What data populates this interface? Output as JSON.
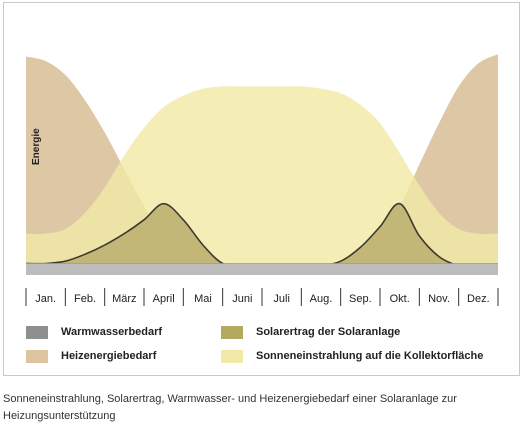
{
  "chart_data": {
    "type": "area",
    "ylabel": "Energie",
    "categories": [
      "Jan.",
      "Feb.",
      "März",
      "April",
      "Mai",
      "Juni",
      "Juli",
      "Aug.",
      "Sep.",
      "Okt.",
      "Nov.",
      "Dez."
    ],
    "x": [
      0,
      0.5,
      1,
      1.5,
      2,
      2.5,
      3,
      3.5,
      4,
      4.5,
      5,
      5.5,
      6,
      6.5,
      7,
      7.5,
      8,
      8.5,
      9,
      9.5,
      10,
      10.5,
      11,
      11.5,
      12
    ],
    "ylim": [
      0,
      100
    ],
    "series": [
      {
        "name": "Sonneneinstrahlung auf die Kollektorfläche",
        "color": "#f1e9a6",
        "values": [
          18,
          18,
          20,
          27,
          38,
          52,
          64,
          73,
          78,
          81,
          82,
          82,
          82,
          82,
          82,
          81,
          79,
          74,
          66,
          53,
          39,
          27,
          20,
          18,
          18
        ]
      },
      {
        "name": "Heizenergiebedarf",
        "color": "#dcc4a0",
        "values": [
          95,
          93,
          87,
          76,
          62,
          46,
          30,
          17,
          8,
          5,
          5,
          5,
          5,
          5,
          5,
          5,
          5,
          8,
          17,
          30,
          48,
          66,
          82,
          92,
          96
        ]
      },
      {
        "name": "Solarertrag der Solaranlage",
        "color": "#c2b776",
        "line_color": "#3d3a33",
        "values": [
          5,
          5,
          6,
          9,
          13,
          18,
          24,
          31,
          24,
          13,
          5,
          4,
          4,
          4,
          4,
          4,
          6,
          12,
          21,
          31,
          17,
          8,
          4,
          3,
          2
        ]
      },
      {
        "name": "Warmwasserbedarf",
        "color": "#bcbcbc",
        "values": [
          5,
          5,
          5,
          5,
          5,
          5,
          5,
          5,
          5,
          5,
          5,
          5,
          5,
          5,
          5,
          5,
          5,
          5,
          5,
          5,
          5,
          5,
          5,
          5,
          5
        ]
      }
    ]
  },
  "legend": [
    {
      "label": "Warmwasserbedarf",
      "color": "#8f8f8f"
    },
    {
      "label": "Heizenergiebedarf",
      "color": "#dcc4a0"
    },
    {
      "label": "Solarertrag der Solaranlage",
      "color": "#b3a95f"
    },
    {
      "label": "Sonneneinstrahlung auf die Kollektorfläche",
      "color": "#f1e9a6"
    }
  ],
  "caption": "Sonneneinstrahlung, Solarertrag, Warmwasser- und Heizenergiebedarf einer Solaranlage zur Heizungsunterstützung"
}
